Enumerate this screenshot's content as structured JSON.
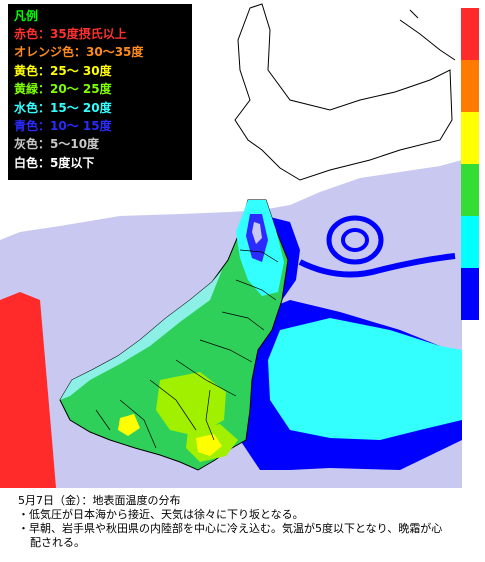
{
  "legend": {
    "title": "凡例",
    "items": [
      {
        "label": "赤色：35度摂氏以上",
        "color": "#ff3030"
      },
      {
        "label": "オレンジ色：30～35度",
        "color": "#ff8c1a"
      },
      {
        "label": "黄色：25～ 30度",
        "color": "#ffff00"
      },
      {
        "label": "黄緑：20～ 25度",
        "color": "#80ff00"
      },
      {
        "label": "水色：15～ 20度",
        "color": "#33ffff"
      },
      {
        "label": "青色：10～ 15度",
        "color": "#2b2bff"
      },
      {
        "label": "灰色：5～10度",
        "color": "#c8c8c8"
      },
      {
        "label": "白色：5度以下",
        "color": "#ffffff"
      }
    ]
  },
  "scale": [
    "#ff2a2a",
    "#ff7a00",
    "#ffff00",
    "#33dd33",
    "#00ffff",
    "#0000ff",
    "#c8c8f0"
  ],
  "map_colors": {
    "sea_lavender": "#c8c8f0",
    "deep_blue": "#0000ff",
    "cyan": "#33ffff",
    "light_cyan": "#8cf0e6",
    "green": "#2fd05a",
    "yellow_green": "#a0f000",
    "yellow": "#ffff00",
    "red": "#ff2a2a",
    "coast_line": "#000000"
  },
  "caption": {
    "line1": "5月7日（金）：地表面温度の分布",
    "line2": "・低気圧が日本海から接近、天気は徐々に下り坂となる。",
    "line3": "・早朝、岩手県や秋田県の内陸部を中心に冷え込む。気温が5度以下となり、晩霜が心",
    "line4": "配される。"
  }
}
